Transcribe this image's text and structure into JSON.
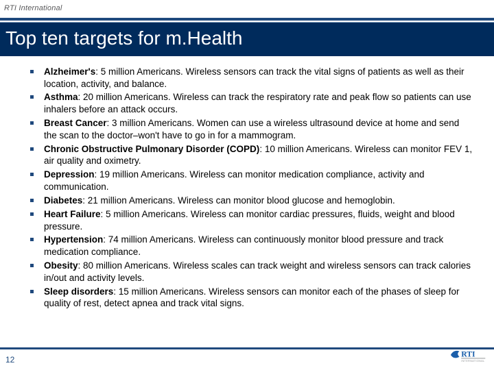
{
  "header": {
    "org": "RTI International"
  },
  "title": "Top ten targets for m.Health",
  "page_number": "12",
  "colors": {
    "title_bg": "#002b5c",
    "accent": "#1f497d",
    "thin_line": "#7f9fbf",
    "text": "#000000",
    "page_num": "#1f497d",
    "logo_blue": "#1b5faa",
    "logo_gray": "#8a8c8e"
  },
  "items": [
    {
      "bold": "Alzheimer's",
      "after_bold": ": 5 million Americans. Wireless sensors can track the vital signs of patients as well as their location, activity, and balance."
    },
    {
      "bold": "Asthma",
      "after_bold": ": 20 million Americans. Wireless can track the respiratory rate and peak flow so patients can use inhalers before an attack occurs."
    },
    {
      "bold": "Breast Cancer",
      "after_bold": ": 3 million Americans. Women can use a wireless ultrasound device at home and send the scan to the doctor–won't have to go in for a mammogram."
    },
    {
      "bold": "Chronic Obstructive Pulmonary Disorder (COPD)",
      "after_bold": ": 10 million Americans. Wireless can monitor FEV 1, air quality and oximetry."
    },
    {
      "bold": "Depression",
      "after_bold": ": 19 million Americans. Wireless can monitor medication compliance, activity and communication."
    },
    {
      "bold": "Diabetes",
      "after_bold": ": 21 million Americans. Wireless can monitor blood glucose and hemoglobin."
    },
    {
      "bold": "Heart Failure",
      "after_bold": ": 5 million Americans. Wireless can monitor cardiac pressures, fluids, weight and blood pressure."
    },
    {
      "bold": "Hypertension",
      "after_bold": ": 74 million Americans. Wireless can continuously monitor blood pressure and track medication compliance."
    },
    {
      "bold": "Obesity",
      "after_bold": ": 80 million Americans. Wireless scales can track weight and wireless sensors can track calories in/out and activity levels."
    },
    {
      "bold": "Sleep disorders",
      "after_bold": ": 15 million Americans. Wireless sensors can monitor each of the phases of sleep for quality of rest, detect apnea and track vital signs."
    }
  ]
}
